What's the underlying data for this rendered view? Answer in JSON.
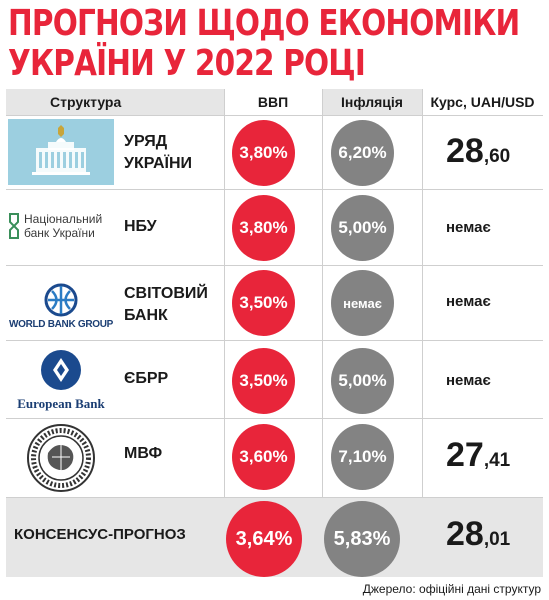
{
  "title": {
    "line1": "ПРОГНОЗИ ЩОДО ЕКОНОМІКИ",
    "line2": "УКРАЇНИ У 2022 РОЦІ"
  },
  "headers": {
    "structure": "Структура",
    "gdp": "ВВП",
    "inflation": "Інфляція",
    "rate": "Курс, UAH/USD"
  },
  "rows": [
    {
      "org_line1": "УРЯД",
      "org_line2": "УКРАЇНИ",
      "logo_icon": "ukraine-government-building-icon",
      "gdp": "3,80%",
      "inflation": "6,20%",
      "rate_int": "28",
      "rate_frac": ",60",
      "rate_none": ""
    },
    {
      "org_line1": "НБУ",
      "org_line2": "",
      "logo_icon": "nbu-logo",
      "logo_text1": "Національний",
      "logo_text2": "банк України",
      "gdp": "3,80%",
      "inflation": "5,00%",
      "rate_int": "",
      "rate_frac": "",
      "rate_none": "немає"
    },
    {
      "org_line1": "СВІТОВИЙ",
      "org_line2": "БАНК",
      "logo_icon": "world-bank-globe-icon",
      "logo_text1": "WORLD BANK GROUP",
      "gdp": "3,50%",
      "inflation": "немає",
      "rate_int": "",
      "rate_frac": "",
      "rate_none": "немає"
    },
    {
      "org_line1": "ЄБРР",
      "org_line2": "",
      "logo_icon": "ebrd-logo-icon",
      "logo_text1": "European Bank",
      "gdp": "3,50%",
      "inflation": "5,00%",
      "rate_int": "",
      "rate_frac": "",
      "rate_none": "немає"
    },
    {
      "org_line1": "МВФ",
      "org_line2": "",
      "logo_icon": "imf-seal-icon",
      "gdp": "3,60%",
      "inflation": "7,10%",
      "rate_int": "27",
      "rate_frac": ",41",
      "rate_none": ""
    }
  ],
  "consensus": {
    "label": "КОНСЕНСУС-ПРОГНОЗ",
    "gdp": "3,64%",
    "inflation": "5,83%",
    "rate_int": "28",
    "rate_frac": ",01"
  },
  "source": "Джерело: офіційні дані структур",
  "colors": {
    "accent_red": "#e8253a",
    "grey_circle": "#838383",
    "header_bg": "#e6e6e6"
  }
}
